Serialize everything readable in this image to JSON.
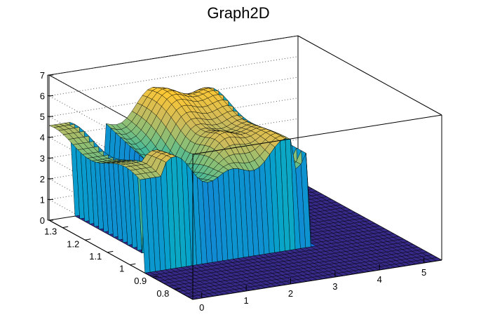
{
  "chart_data": {
    "type": "surface3d",
    "title": "Graph2D",
    "x_ticks": [
      "0",
      "1",
      "2",
      "3",
      "4",
      "5"
    ],
    "y_ticks": [
      "0.8",
      "0.9",
      "1",
      "1.1",
      "1.2",
      "1.3"
    ],
    "z_ticks": [
      "0",
      "1",
      "2",
      "3",
      "4",
      "5",
      "6",
      "7"
    ],
    "xlim": [
      -0.2,
      5.4
    ],
    "ylim": [
      0.72,
      1.36
    ],
    "zlim": [
      0,
      7
    ],
    "grid": true,
    "colormap": [
      "#352a87",
      "#0f5cdd",
      "#1481d6",
      "#06a4ca",
      "#2eb7a4",
      "#87bf77",
      "#d1bb59",
      "#fec832",
      "#f9fb0e"
    ],
    "surface_description": "plateau near z=4-6 over x 0-3.3 and y 0.95-1.36, with a front wall at y~0.95, deep gap near x~0.5-1 (y>1.05) and a narrow ridge at x~3.3-3.6; zero floor elsewhere"
  }
}
